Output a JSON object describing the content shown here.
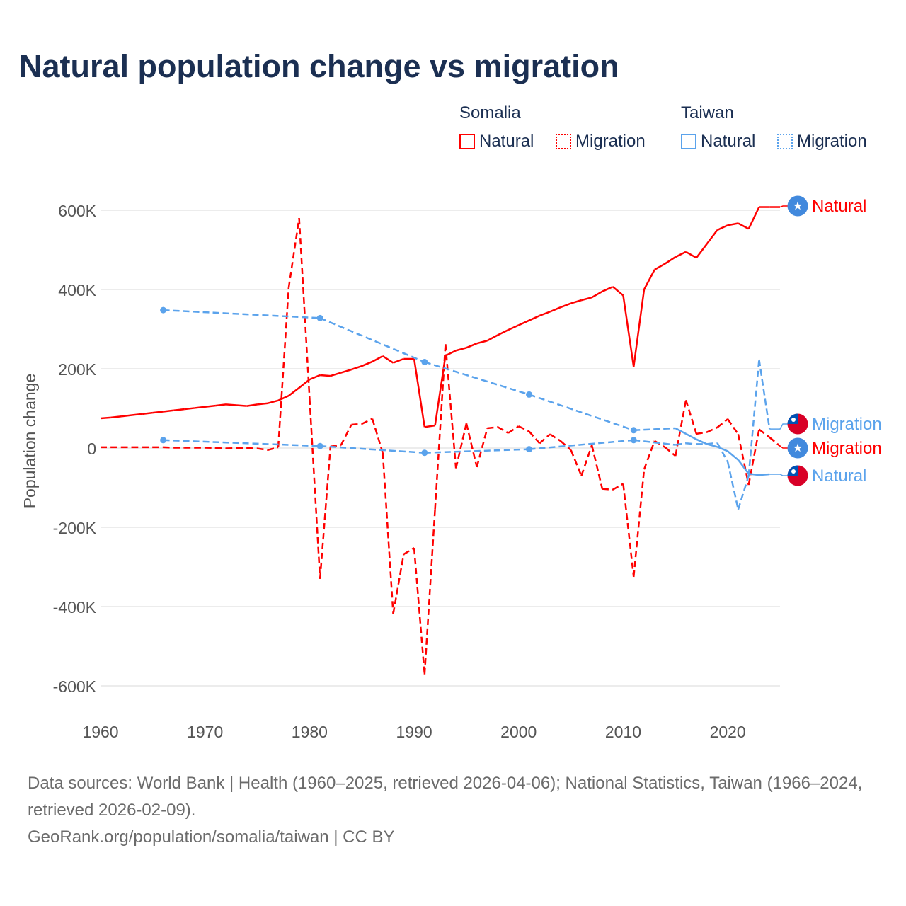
{
  "title": "Natural population change vs migration",
  "legend": {
    "groups": [
      {
        "name": "Somalia",
        "color": "#ff0000",
        "items": [
          "Natural",
          "Migration"
        ]
      },
      {
        "name": "Taiwan",
        "color": "#5ba3ec",
        "items": [
          "Natural",
          "Migration"
        ]
      }
    ]
  },
  "footer": {
    "sources": "Data sources: World Bank | Health (1960–2025, retrieved 2026-04-06); National Statistics, Taiwan (1966–2024, retrieved 2026-02-09).",
    "credit": "GeoRank.org/population/somalia/taiwan | CC BY"
  },
  "chart_data": {
    "type": "line",
    "title": "Natural population change vs migration",
    "xlabel": "",
    "ylabel": "Population change",
    "xlim": [
      1960,
      2025
    ],
    "ylim": [
      -600000,
      600000
    ],
    "x_ticks": [
      1960,
      1970,
      1980,
      1990,
      2000,
      2010,
      2020
    ],
    "y_ticks": [
      600000,
      400000,
      200000,
      0,
      -200000,
      -400000,
      -600000
    ],
    "y_tick_labels": [
      "600K",
      "400K",
      "200K",
      "0",
      "-200K",
      "-400K",
      "-600K"
    ],
    "grid": true,
    "series": [
      {
        "name": "Natural",
        "country": "Somalia",
        "color": "#ff0000",
        "style": "solid",
        "end_label": "Natural",
        "x": [
          1960,
          1961,
          1962,
          1963,
          1964,
          1965,
          1966,
          1967,
          1968,
          1969,
          1970,
          1971,
          1972,
          1973,
          1974,
          1975,
          1976,
          1977,
          1978,
          1979,
          1980,
          1981,
          1982,
          1983,
          1984,
          1985,
          1986,
          1987,
          1988,
          1989,
          1990,
          1991,
          1992,
          1993,
          1994,
          1995,
          1996,
          1997,
          1998,
          1999,
          2000,
          2001,
          2002,
          2003,
          2004,
          2005,
          2006,
          2007,
          2008,
          2009,
          2010,
          2011,
          2012,
          2013,
          2014,
          2015,
          2016,
          2017,
          2018,
          2019,
          2020,
          2021,
          2022,
          2023,
          2024,
          2025
        ],
        "y": [
          75000,
          77000,
          80000,
          83000,
          86000,
          89000,
          92000,
          95000,
          98000,
          101000,
          104000,
          107000,
          110000,
          108000,
          106000,
          110000,
          113000,
          120000,
          132000,
          152000,
          173000,
          184000,
          182000,
          190000,
          198000,
          207000,
          218000,
          232000,
          215000,
          225000,
          225000,
          53000,
          57000,
          233000,
          246000,
          253000,
          264000,
          271000,
          285000,
          298000,
          310000,
          322000,
          334000,
          344000,
          355000,
          365000,
          373000,
          380000,
          395000,
          407000,
          385000,
          205000,
          400000,
          450000,
          465000,
          482000,
          495000,
          480000,
          515000,
          550000,
          562000,
          567000,
          553000,
          608000,
          608000,
          608000
        ]
      },
      {
        "name": "Migration",
        "country": "Somalia",
        "color": "#ff0000",
        "style": "dashed",
        "end_label": "Migration",
        "x": [
          1960,
          1961,
          1962,
          1963,
          1964,
          1965,
          1966,
          1967,
          1968,
          1969,
          1970,
          1971,
          1972,
          1973,
          1974,
          1975,
          1976,
          1977,
          1978,
          1979,
          1980,
          1981,
          1982,
          1983,
          1984,
          1985,
          1986,
          1987,
          1988,
          1989,
          1990,
          1991,
          1992,
          1993,
          1994,
          1995,
          1996,
          1997,
          1998,
          1999,
          2000,
          2001,
          2002,
          2003,
          2004,
          2005,
          2006,
          2007,
          2008,
          2009,
          2010,
          2011,
          2012,
          2013,
          2014,
          2015,
          2016,
          2017,
          2018,
          2019,
          2020,
          2021,
          2022,
          2023,
          2024,
          2025
        ],
        "y": [
          2000,
          2000,
          2000,
          2000,
          2000,
          2000,
          2000,
          1000,
          1000,
          1000,
          1000,
          0,
          -1000,
          0,
          0,
          -1000,
          -5000,
          2000,
          404000,
          580000,
          125000,
          -330000,
          4000,
          7000,
          59000,
          61000,
          74000,
          -12000,
          -418000,
          -268000,
          -252000,
          -571000,
          -155000,
          262000,
          -51000,
          62000,
          -48000,
          50000,
          53000,
          38000,
          55000,
          42000,
          12000,
          35000,
          18000,
          -5000,
          -70000,
          7000,
          -103000,
          -105000,
          -90000,
          -325000,
          -54000,
          18000,
          2000,
          -20000,
          121000,
          36000,
          40000,
          52000,
          73000,
          35000,
          -93000,
          47000,
          27000,
          5000
        ]
      },
      {
        "name": "Natural",
        "country": "Taiwan",
        "color": "#5ba3ec",
        "style": "solid",
        "end_label": "Natural",
        "x": [
          1966,
          1981,
          1991,
          2001,
          2011,
          2015,
          2016,
          2017,
          2018,
          2019,
          2020,
          2021,
          2022,
          2023,
          2024
        ],
        "y": [
          348000,
          328000,
          217000,
          135000,
          45000,
          50000,
          36000,
          22000,
          10000,
          3000,
          -8000,
          -30000,
          -65000,
          -68000,
          -66000
        ]
      },
      {
        "name": "Migration",
        "country": "Taiwan",
        "color": "#5ba3ec",
        "style": "dashed",
        "end_label": "Migration",
        "x": [
          1966,
          1981,
          1991,
          2001,
          2011,
          2015,
          2016,
          2017,
          2018,
          2019,
          2020,
          2021,
          2022,
          2023,
          2024
        ],
        "y": [
          20000,
          5000,
          -12000,
          -3000,
          20000,
          8000,
          12000,
          10000,
          10000,
          13000,
          -35000,
          -155000,
          -70000,
          223000,
          48000
        ]
      }
    ]
  }
}
